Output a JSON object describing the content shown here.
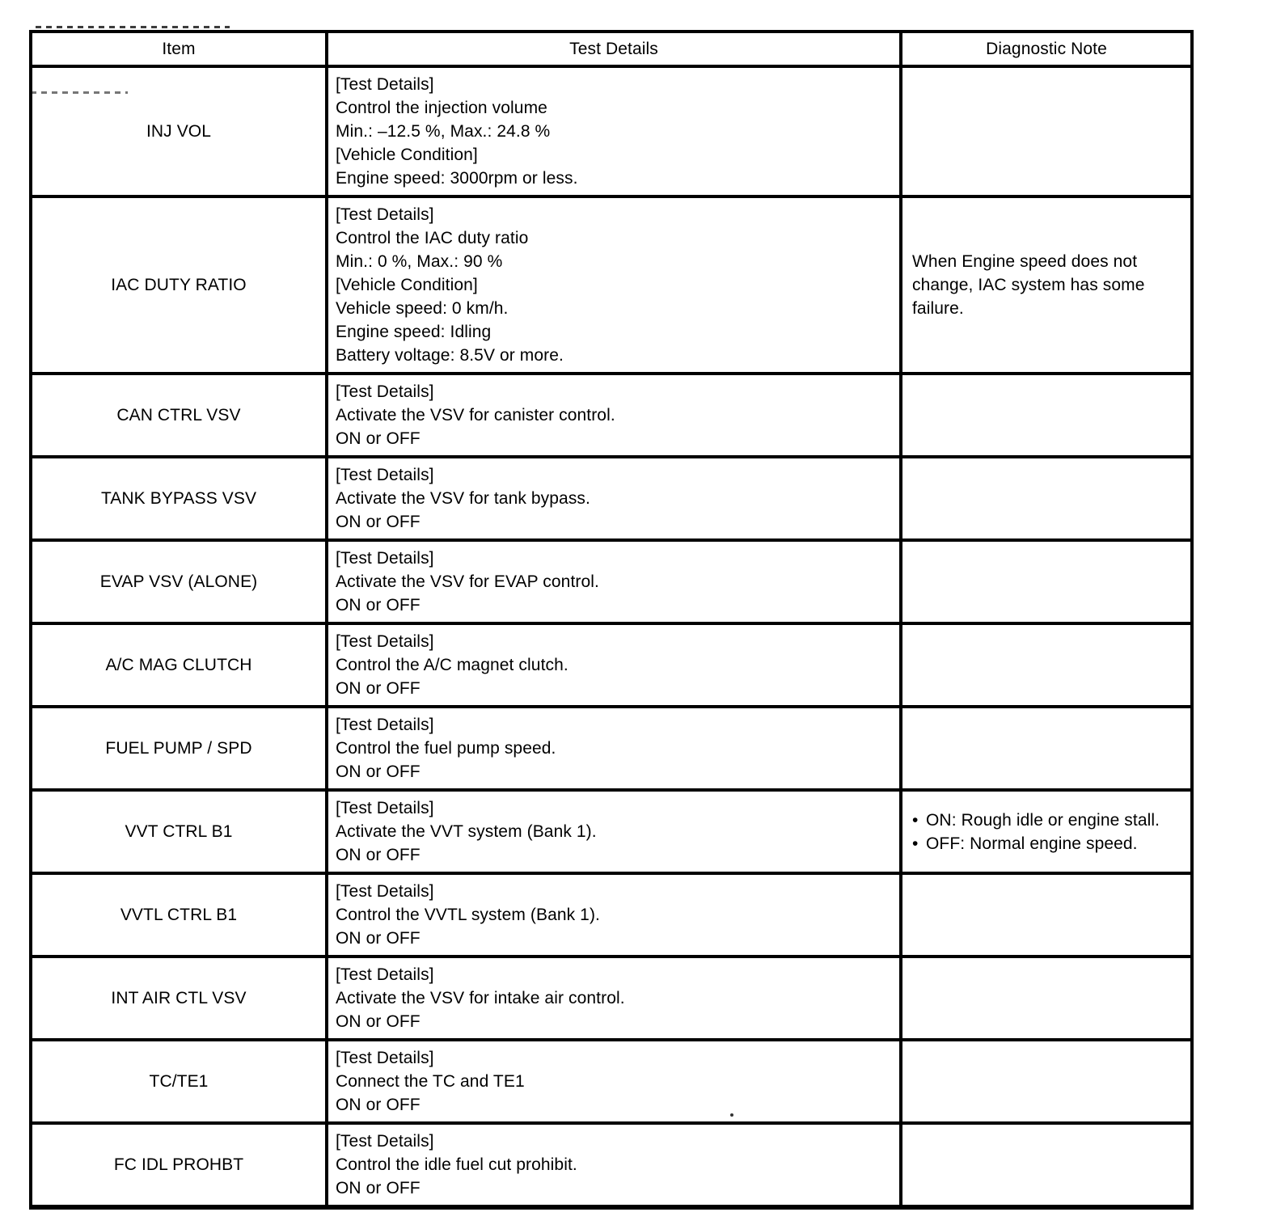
{
  "table": {
    "headers": [
      {
        "label": "Item"
      },
      {
        "label": "Test Details"
      },
      {
        "label": "Diagnostic Note"
      }
    ],
    "rows": [
      {
        "item": "INJ VOL",
        "test_details": [
          "[Test Details]",
          "Control the injection volume",
          "Min.: –12.5 %, Max.: 24.8 %",
          "[Vehicle Condition]",
          "Engine speed: 3000rpm or less."
        ],
        "note": null
      },
      {
        "item": "IAC DUTY RATIO",
        "test_details": [
          "[Test Details]",
          "Control the IAC duty ratio",
          "Min.: 0 %, Max.: 90 %",
          "[Vehicle Condition]",
          "Vehicle speed: 0 km/h.",
          "Engine speed: Idling",
          "Battery voltage: 8.5V or more."
        ],
        "note": {
          "type": "text",
          "text": "When Engine speed does not change, IAC system has some failure."
        }
      },
      {
        "item": "CAN CTRL VSV",
        "test_details": [
          "[Test Details]",
          "Activate the VSV for canister control.",
          "ON or OFF"
        ],
        "note": null
      },
      {
        "item": "TANK BYPASS VSV",
        "test_details": [
          "[Test Details]",
          "Activate the VSV for tank bypass.",
          "ON or OFF"
        ],
        "note": null
      },
      {
        "item": "EVAP VSV (ALONE)",
        "test_details": [
          "[Test Details]",
          "Activate the VSV for EVAP control.",
          "ON or OFF"
        ],
        "note": null
      },
      {
        "item": "A/C MAG CLUTCH",
        "test_details": [
          "[Test Details]",
          "Control the A/C magnet clutch.",
          "ON or OFF"
        ],
        "note": null
      },
      {
        "item": "FUEL PUMP / SPD",
        "test_details": [
          "[Test Details]",
          "Control the fuel pump speed.",
          "ON or OFF"
        ],
        "note": null
      },
      {
        "item": "VVT CTRL B1",
        "test_details": [
          "[Test Details]",
          "Activate the VVT system (Bank 1).",
          "ON or OFF"
        ],
        "note": {
          "type": "bullets",
          "items": [
            "ON: Rough idle or engine stall.",
            "OFF: Normal engine speed."
          ]
        }
      },
      {
        "item": "VVTL CTRL B1",
        "test_details": [
          "[Test Details]",
          "Control the VVTL system (Bank 1).",
          "ON or OFF"
        ],
        "note": null
      },
      {
        "item": "INT AIR CTL VSV",
        "test_details": [
          "[Test Details]",
          "Activate the VSV for intake air control.",
          "ON or OFF"
        ],
        "note": null
      },
      {
        "item": "TC/TE1",
        "test_details": [
          "[Test Details]",
          "Connect the TC and TE1",
          "ON or OFF"
        ],
        "note": null
      },
      {
        "item": "FC IDL PROHBT",
        "test_details": [
          "[Test Details]",
          "Control the idle fuel cut prohibit.",
          "ON or OFF"
        ],
        "note": null
      }
    ]
  },
  "colors": {
    "border": "#000000",
    "background": "#ffffff",
    "text": "#000000"
  }
}
